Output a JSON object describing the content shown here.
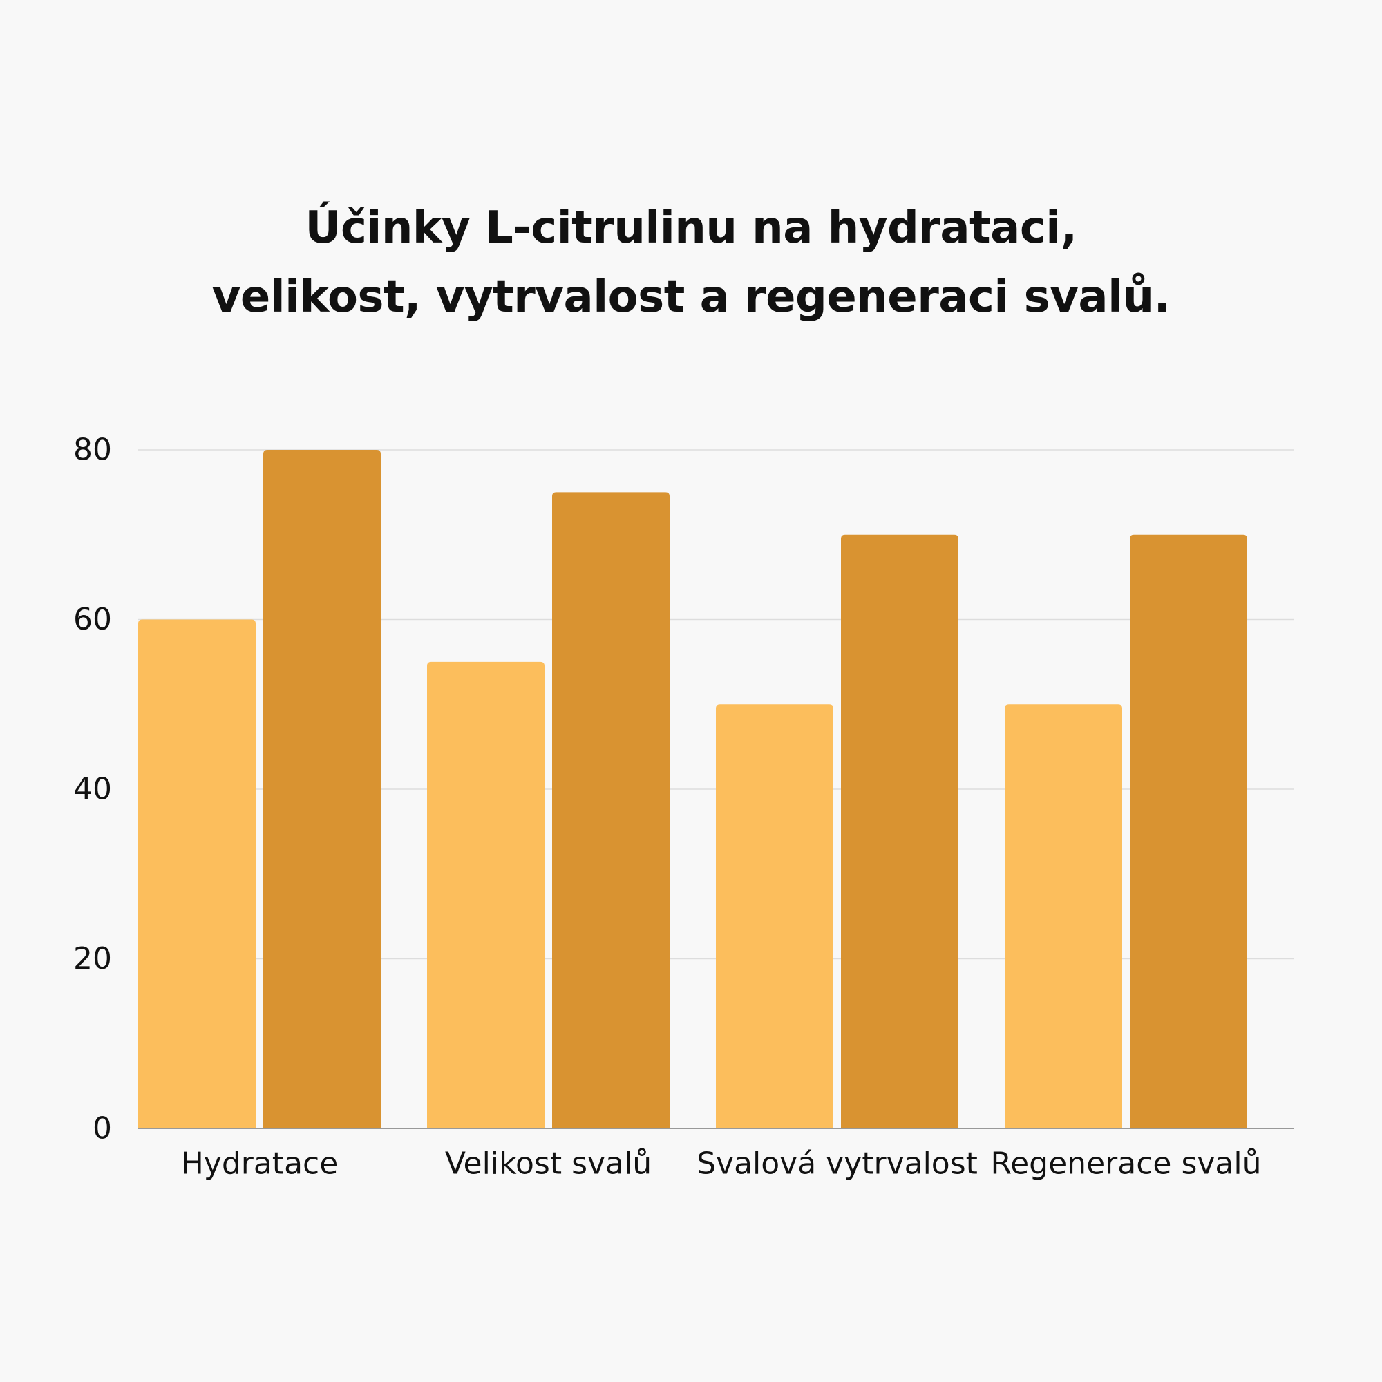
{
  "chart_data": {
    "type": "bar",
    "title_lines": [
      "Účinky L-citrulinu na hydrataci,",
      "velikost, vytrvalost a regeneraci svalů."
    ],
    "xlabel": "",
    "ylabel": "",
    "categories": [
      "Hydratace",
      "Velikost svalů",
      "Svalová vytrvalost",
      "Regenerace svalů"
    ],
    "series": [
      {
        "values": [
          60,
          55,
          50,
          50
        ],
        "color": "#fcbe5c"
      },
      {
        "values": [
          80,
          75,
          70,
          70
        ],
        "color": "#d99331"
      }
    ],
    "yticks": [
      "0",
      "20",
      "40",
      "60",
      "80"
    ],
    "ylim": [
      0,
      80
    ],
    "grid": true,
    "legend": "none"
  }
}
